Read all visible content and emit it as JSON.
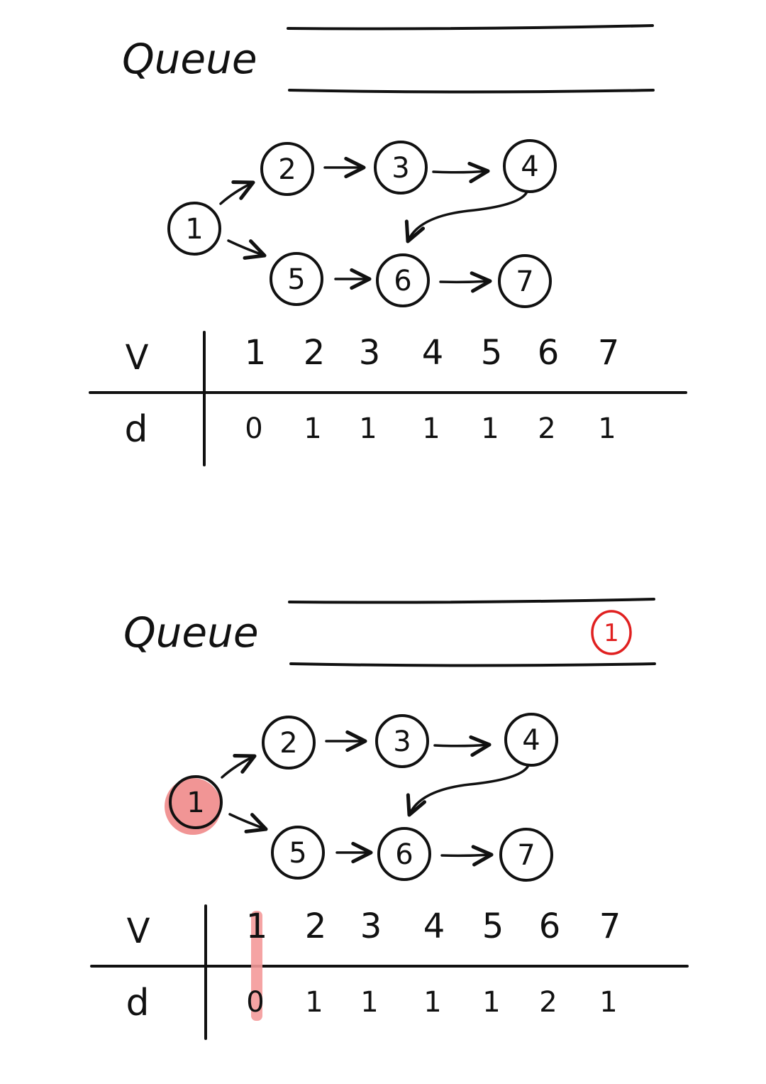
{
  "panels": [
    {
      "queue_label": "Queue",
      "queue_items": [],
      "visited_highlight": null,
      "nodes": [
        {
          "id": "1",
          "label": "1",
          "highlight": false
        },
        {
          "id": "2",
          "label": "2",
          "highlight": false
        },
        {
          "id": "3",
          "label": "3",
          "highlight": false
        },
        {
          "id": "4",
          "label": "4",
          "highlight": false
        },
        {
          "id": "5",
          "label": "5",
          "highlight": false
        },
        {
          "id": "6",
          "label": "6",
          "highlight": false
        },
        {
          "id": "7",
          "label": "7",
          "highlight": false
        }
      ],
      "edges": [
        {
          "from": "1",
          "to": "2"
        },
        {
          "from": "2",
          "to": "3"
        },
        {
          "from": "3",
          "to": "4"
        },
        {
          "from": "4",
          "to": "6"
        },
        {
          "from": "1",
          "to": "5"
        },
        {
          "from": "5",
          "to": "6"
        },
        {
          "from": "6",
          "to": "7"
        }
      ],
      "table": {
        "row_v_label": "V",
        "row_d_label": "d",
        "v": [
          "1",
          "2",
          "3",
          "4",
          "5",
          "6",
          "7"
        ],
        "d": [
          "0",
          "1",
          "1",
          "1",
          "1",
          "2",
          "1"
        ]
      }
    },
    {
      "queue_label": "Queue",
      "queue_items": [
        "1"
      ],
      "visited_highlight": "1",
      "nodes": [
        {
          "id": "1",
          "label": "1",
          "highlight": true
        },
        {
          "id": "2",
          "label": "2",
          "highlight": false
        },
        {
          "id": "3",
          "label": "3",
          "highlight": false
        },
        {
          "id": "4",
          "label": "4",
          "highlight": false
        },
        {
          "id": "5",
          "label": "5",
          "highlight": false
        },
        {
          "id": "6",
          "label": "6",
          "highlight": false
        },
        {
          "id": "7",
          "label": "7",
          "highlight": false
        }
      ],
      "edges": [
        {
          "from": "1",
          "to": "2"
        },
        {
          "from": "2",
          "to": "3"
        },
        {
          "from": "3",
          "to": "4"
        },
        {
          "from": "4",
          "to": "6"
        },
        {
          "from": "1",
          "to": "5"
        },
        {
          "from": "5",
          "to": "6"
        },
        {
          "from": "6",
          "to": "7"
        }
      ],
      "table": {
        "row_v_label": "V",
        "row_d_label": "d",
        "v": [
          "1",
          "2",
          "3",
          "4",
          "5",
          "6",
          "7"
        ],
        "d": [
          "0",
          "1",
          "1",
          "1",
          "1",
          "2",
          "1"
        ]
      }
    }
  ],
  "colors": {
    "ink": "#111111",
    "highlight_fill": "#f08a8a",
    "queue_item_red": "#e02020",
    "visited_bar": "#f49a9a"
  }
}
